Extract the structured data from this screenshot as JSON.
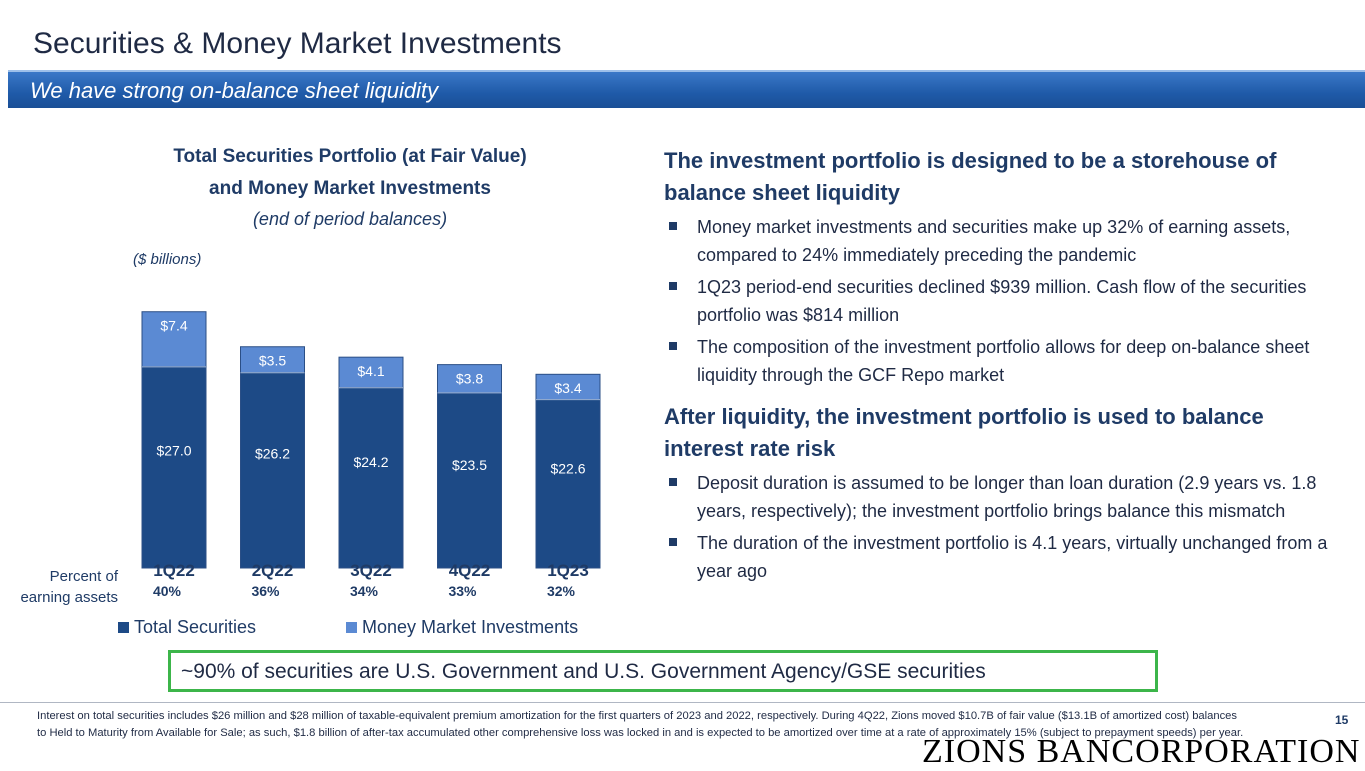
{
  "slide": {
    "title": "Securities & Money Market Investments",
    "banner": "We have strong on-balance sheet liquidity",
    "page_number": "15",
    "logo_text": "ZIONS BANCORPORATION",
    "colors": {
      "banner": "#1f5aa8",
      "dark_bar": "#1d4a86",
      "light_bar": "#5b8ad3",
      "title": "#1f3b66",
      "callout_border": "#3cb54a"
    }
  },
  "chart_header": {
    "title_line1": "Total Securities Portfolio (at Fair Value)",
    "title_line2": "and Money Market Investments",
    "subtitle": "(end of period balances)",
    "units": "($ billions)",
    "percent_label": "Percent of earning assets"
  },
  "chart_data": {
    "type": "bar",
    "stacked": true,
    "categories": [
      "1Q22",
      "2Q22",
      "3Q22",
      "4Q22",
      "1Q23"
    ],
    "series": [
      {
        "name": "Total Securities",
        "values": [
          27.0,
          26.2,
          24.2,
          23.5,
          22.6
        ],
        "labels": [
          "$27.0",
          "$26.2",
          "$24.2",
          "$23.5",
          "$22.6"
        ],
        "color": "#1d4a86"
      },
      {
        "name": "Money Market Investments",
        "values": [
          7.4,
          3.5,
          4.1,
          3.8,
          3.4
        ],
        "labels": [
          "$7.4",
          "$3.5",
          "$4.1",
          "$3.8",
          "$3.4"
        ],
        "color": "#5b8ad3"
      }
    ],
    "percent_of_earning_assets": [
      "40%",
      "36%",
      "34%",
      "33%",
      "32%"
    ],
    "ylim": [
      0,
      36
    ],
    "legend": [
      "Total Securities",
      "Money Market Investments"
    ],
    "legend_position": "bottom"
  },
  "right_panel": {
    "heading1": "The investment portfolio is designed to be a storehouse of balance sheet liquidity",
    "bullets1": [
      "Money market investments and securities make up 32% of earning assets, compared to 24% immediately preceding the pandemic",
      "1Q23 period-end securities declined $939 million. Cash flow of the securities portfolio was $814 million",
      "The composition of the investment portfolio allows for deep on-balance sheet liquidity through the GCF Repo market"
    ],
    "heading2": "After liquidity, the investment portfolio is used to balance interest rate risk",
    "bullets2": [
      "Deposit duration is assumed to be longer than loan duration (2.9 years vs. 1.8 years, respectively); the investment portfolio brings balance this mismatch",
      "The duration of the investment portfolio is 4.1 years, virtually unchanged from a year ago"
    ]
  },
  "callout": "~90% of securities are U.S. Government and U.S. Government Agency/GSE securities",
  "footnote": "Interest on total securities includes $26 million and $28 million of taxable-equivalent premium amortization for the first quarters of 2023 and 2022, respectively. During 4Q22, Zions moved $10.7B of fair value ($13.1B of amortized cost) balances to Held to Maturity from Available for Sale; as such, $1.8 billion of after-tax accumulated other comprehensive loss was locked in and is expected to be amortized over time at a rate of approximately 15% (subject to prepayment speeds) per year."
}
